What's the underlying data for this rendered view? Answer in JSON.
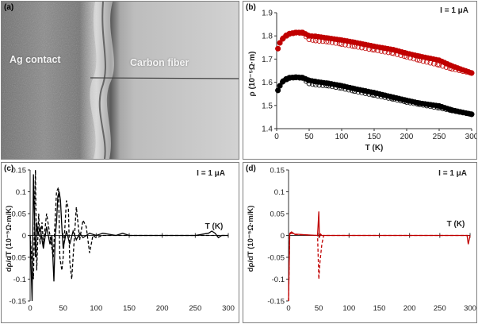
{
  "panels": {
    "a": {
      "label": "(a)",
      "left_text": "Ag contact",
      "right_text": "Carbon fiber"
    },
    "b": {
      "label": "(b)",
      "current": "I = 1 μA"
    },
    "c": {
      "label": "(c)",
      "current": "I = 1 μA"
    },
    "d": {
      "label": "(d)",
      "current": "I = 1 μA"
    }
  },
  "colors": {
    "red": "#c00000",
    "black": "#000000",
    "photo_dark": "#5e5e5e",
    "photo_light": "#d8d8d8"
  },
  "chart_data": [
    {
      "panel": "b",
      "type": "scatter",
      "xlabel": "T (K)",
      "ylabel": "ρ (10⁻⁵Ω·m)",
      "xlim": [
        0,
        300
      ],
      "ylim": [
        1.4,
        1.9
      ],
      "x_ticks": [
        0,
        50,
        100,
        150,
        200,
        250,
        300
      ],
      "y_ticks": [
        1.4,
        1.5,
        1.6,
        1.7,
        1.8,
        1.9
      ],
      "annotation": "I = 1 μA",
      "series": [
        {
          "marker": "filled",
          "color": "#c00000",
          "x": [
            2,
            5,
            10,
            15,
            20,
            30,
            40,
            50,
            60,
            80,
            100,
            120,
            150,
            180,
            200,
            220,
            250,
            270,
            300
          ],
          "y": [
            1.745,
            1.77,
            1.79,
            1.803,
            1.81,
            1.815,
            1.815,
            1.8,
            1.798,
            1.79,
            1.782,
            1.772,
            1.755,
            1.74,
            1.725,
            1.712,
            1.695,
            1.67,
            1.64
          ]
        },
        {
          "marker": "open",
          "color": "#c00000",
          "x": [
            2,
            5,
            10,
            20,
            30,
            40,
            50,
            60,
            80,
            100,
            120,
            150,
            180,
            200,
            220,
            250,
            270,
            300
          ],
          "y": [
            1.745,
            1.77,
            1.79,
            1.808,
            1.813,
            1.812,
            1.785,
            1.78,
            1.775,
            1.765,
            1.755,
            1.74,
            1.725,
            1.71,
            1.695,
            1.675,
            1.658,
            1.64
          ]
        },
        {
          "marker": "filled",
          "color": "#000000",
          "x": [
            2,
            5,
            10,
            15,
            20,
            30,
            40,
            50,
            60,
            80,
            100,
            120,
            150,
            180,
            200,
            220,
            250,
            270,
            300
          ],
          "y": [
            1.565,
            1.585,
            1.605,
            1.615,
            1.62,
            1.622,
            1.62,
            1.608,
            1.603,
            1.595,
            1.585,
            1.572,
            1.555,
            1.535,
            1.522,
            1.51,
            1.498,
            1.48,
            1.462
          ]
        },
        {
          "marker": "open",
          "color": "#000000",
          "x": [
            2,
            5,
            10,
            20,
            30,
            40,
            50,
            60,
            80,
            100,
            120,
            150,
            180,
            200,
            220,
            250,
            270,
            300
          ],
          "y": [
            1.565,
            1.585,
            1.605,
            1.618,
            1.62,
            1.618,
            1.595,
            1.59,
            1.585,
            1.575,
            1.562,
            1.545,
            1.528,
            1.515,
            1.505,
            1.49,
            1.478,
            1.462
          ]
        }
      ]
    },
    {
      "panel": "c",
      "type": "line",
      "xlabel": "T (K)",
      "ylabel": "dρ/dT (10⁻⁵Ω·m/K)",
      "xlim": [
        0,
        300
      ],
      "ylim": [
        -0.15,
        0.15
      ],
      "x_ticks": [
        0,
        50,
        100,
        150,
        200,
        250,
        300
      ],
      "y_ticks": [
        -0.15,
        -0.1,
        -0.05,
        0,
        0.05,
        0.1,
        0.15
      ],
      "annotation": "I = 1 μA",
      "series": [
        {
          "style": "solid",
          "color": "#000000",
          "x": [
            0,
            3,
            5,
            8,
            10,
            12,
            15,
            20,
            25,
            30,
            33,
            36,
            38,
            40,
            42,
            44,
            46,
            48,
            50,
            55,
            60,
            65,
            70,
            75,
            80,
            90,
            100,
            110,
            130,
            140,
            150,
            200,
            250,
            270,
            275,
            280,
            285,
            290,
            300
          ],
          "y": [
            0,
            -0.15,
            0.14,
            -0.05,
            0.03,
            0,
            0.02,
            -0.03,
            0.02,
            -0.02,
            0.0,
            -0.105,
            0.0,
            0.03,
            0.09,
            0.1,
            0.08,
            0.02,
            -0.03,
            0.01,
            -0.02,
            0.01,
            -0.01,
            0.005,
            -0.005,
            0.005,
            0,
            0.005,
            0,
            0.005,
            0,
            0,
            0,
            0.005,
            0.01,
            0.005,
            -0.005,
            0,
            0
          ]
        },
        {
          "style": "dashed",
          "color": "#000000",
          "x": [
            0,
            5,
            8,
            10,
            13,
            15,
            18,
            20,
            25,
            30,
            35,
            40,
            43,
            45,
            48,
            50,
            55,
            58,
            60,
            63,
            65,
            70,
            75,
            80,
            85,
            90,
            95,
            100,
            110,
            150,
            200,
            250,
            300
          ],
          "y": [
            0,
            -0.1,
            0.15,
            -0.08,
            0.05,
            -0.02,
            0.03,
            -0.02,
            0.05,
            0.0,
            -0.05,
            0.1,
            0.11,
            -0.05,
            -0.08,
            -0.05,
            0.08,
            0.06,
            -0.06,
            -0.1,
            -0.05,
            0.065,
            -0.01,
            0.035,
            0.02,
            -0.04,
            0.0,
            -0.005,
            0,
            0,
            0,
            0,
            0
          ]
        }
      ]
    },
    {
      "panel": "d",
      "type": "line",
      "xlabel": "T (K)",
      "ylabel": "dρ/dT (10⁻⁵Ω·m/K)",
      "xlim": [
        0,
        300
      ],
      "ylim": [
        -0.15,
        0.15
      ],
      "x_ticks": [
        0,
        50,
        100,
        150,
        200,
        250,
        300
      ],
      "y_ticks": [
        -0.15,
        -0.1,
        -0.05,
        0,
        0.05,
        0.1,
        0.15
      ],
      "annotation": "I = 1 μA",
      "series": [
        {
          "style": "solid",
          "color": "#c00000",
          "x": [
            0,
            2,
            5,
            10,
            48,
            50,
            51,
            53,
            55,
            60,
            100,
            200,
            295,
            297,
            300
          ],
          "y": [
            -0.15,
            0.005,
            0.008,
            0.003,
            0,
            0.055,
            -0.005,
            0.003,
            0,
            0,
            0,
            0,
            0,
            -0.02,
            0
          ]
        },
        {
          "style": "dashed",
          "color": "#c00000",
          "x": [
            0,
            2,
            5,
            10,
            48,
            50,
            52,
            55,
            58,
            60,
            100,
            200,
            300
          ],
          "y": [
            -0.15,
            0.003,
            0.005,
            0.002,
            0,
            -0.1,
            -0.06,
            -0.02,
            0,
            0,
            0,
            0,
            0
          ]
        }
      ]
    }
  ]
}
